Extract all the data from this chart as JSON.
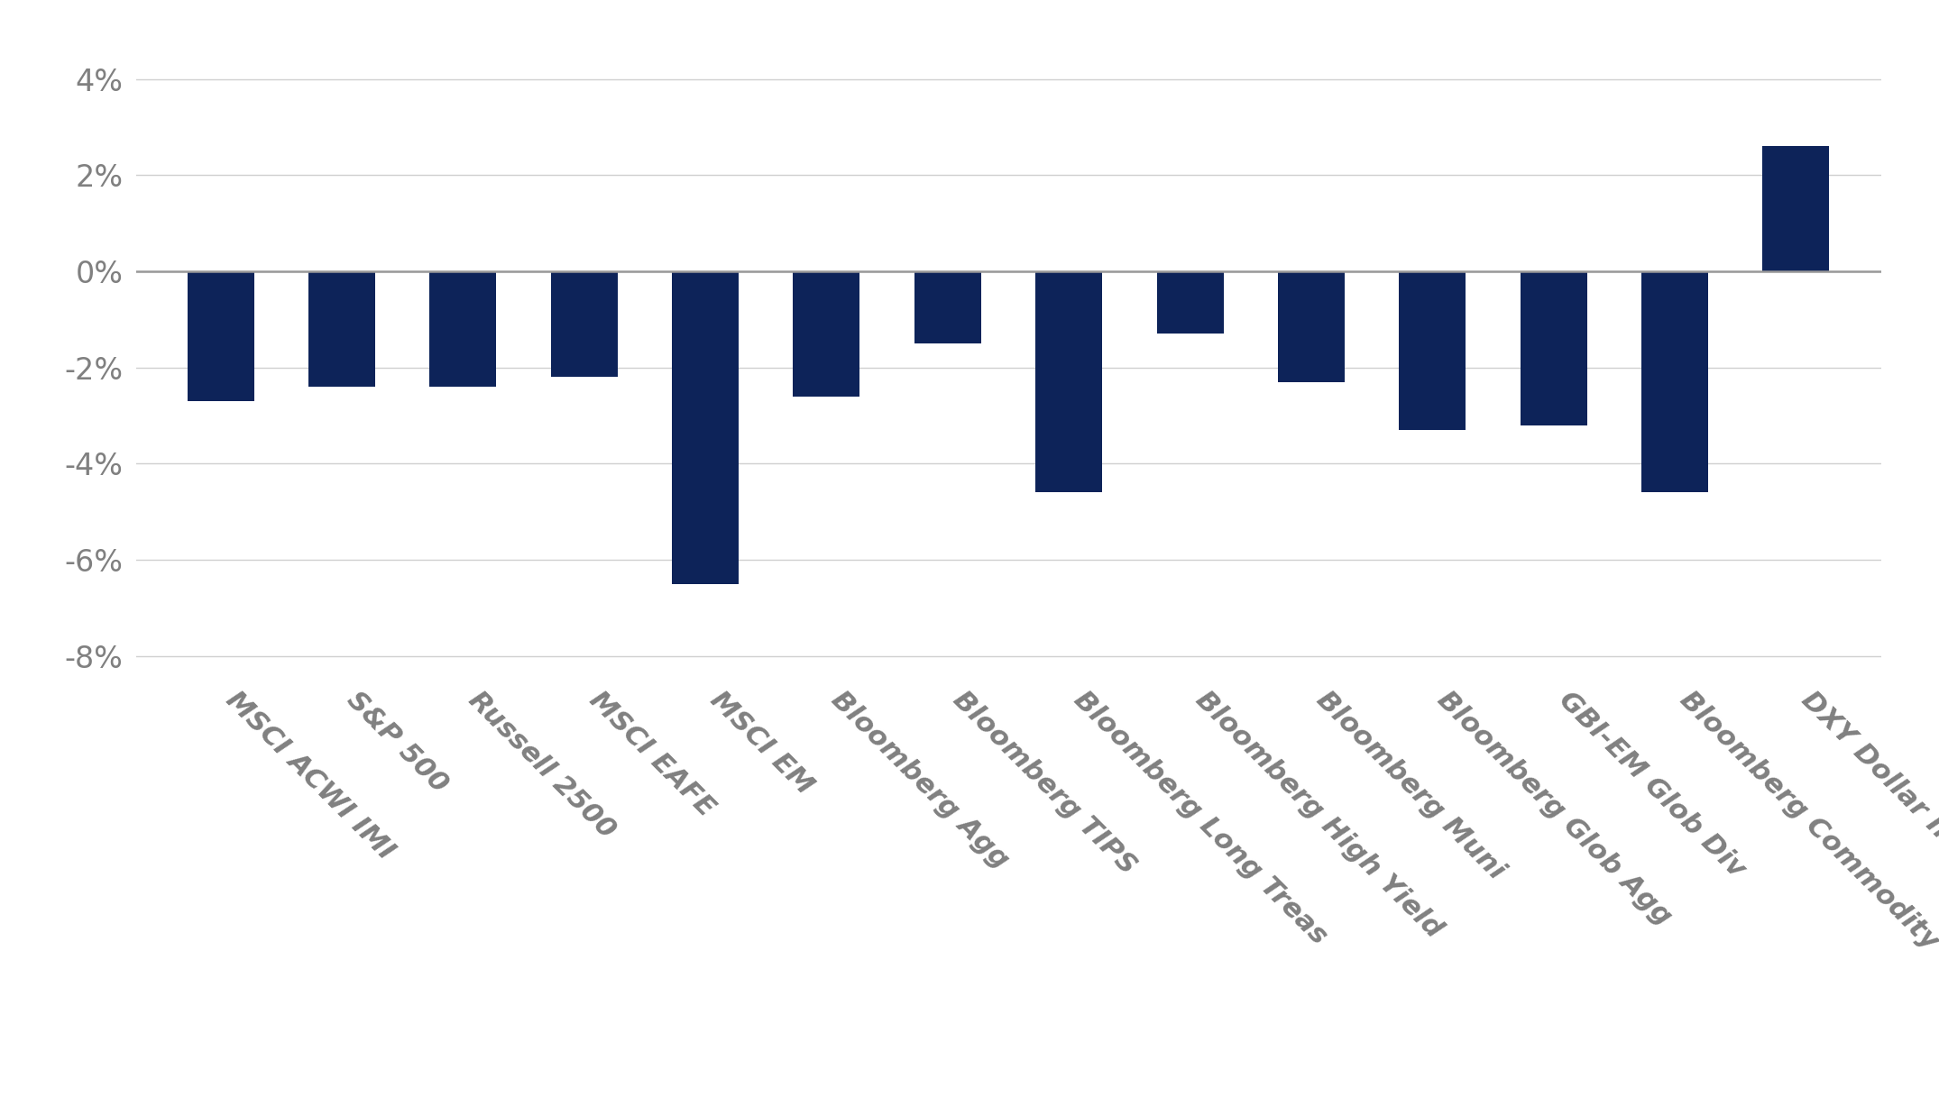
{
  "categories": [
    "MSCI ACWI IMI",
    "S&P 500",
    "Russell 2500",
    "MSCI EAFE",
    "MSCI EM",
    "Bloomberg Agg",
    "Bloomberg TIPS",
    "Bloomberg Long Treas",
    "Bloomberg High Yield",
    "Bloomberg Muni",
    "Bloomberg Glob Agg",
    "GBI-EM Glob Div",
    "Bloomberg Commodity",
    "DXY Dollar Index"
  ],
  "values": [
    -2.7,
    -2.4,
    -2.4,
    -2.2,
    -6.5,
    -2.6,
    -1.5,
    -4.6,
    -1.3,
    -2.3,
    -3.3,
    -3.2,
    -4.6,
    2.6
  ],
  "bar_color": "#0d2359",
  "ylim": [
    -8.5,
    4.5
  ],
  "yticks": [
    -8,
    -6,
    -4,
    -2,
    0,
    2,
    4
  ],
  "background_color": "#ffffff",
  "grid_color": "#d0d0d0",
  "tick_label_color": "#808080",
  "bar_width": 0.55,
  "figsize": [
    21.5,
    12.17
  ],
  "dpi": 100
}
